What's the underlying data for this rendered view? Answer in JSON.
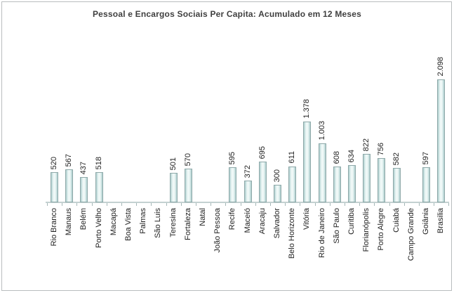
{
  "chart_data": {
    "type": "bar",
    "title": "Pessoal e Encargos Sociais Per Capita: Acumulado em 12 Meses",
    "categories": [
      "Rio Branco",
      "Manaus",
      "Belém",
      "Porto Velho",
      "Macapá",
      "Boa Vista",
      "Palmas",
      "São Luis",
      "Teresina",
      "Fortaleza",
      "Natal",
      "João Pessoa",
      "Recife",
      "Maceió",
      "Aracaju",
      "Salvador",
      "Belo Horizonte",
      "Vitória",
      "Rio de Janeiro",
      "São Paulo",
      "Curitiba",
      "Florianópolis",
      "Porto Alegre",
      "Cuiabá",
      "Campo Grande",
      "Goiânia",
      "Brasilia"
    ],
    "values": [
      520,
      567,
      437,
      518,
      null,
      null,
      null,
      null,
      501,
      570,
      null,
      null,
      595,
      372,
      695,
      300,
      611,
      1378,
      1003,
      608,
      634,
      822,
      756,
      582,
      null,
      597,
      2098
    ],
    "value_labels": [
      "520",
      "567",
      "437",
      "518",
      null,
      null,
      null,
      null,
      "501",
      "570",
      null,
      null,
      "595",
      "372",
      "695",
      "300",
      "611",
      "1.378",
      "1.003",
      "608",
      "634",
      "822",
      "756",
      "582",
      null,
      "597",
      "2.098"
    ],
    "ylim": [
      0,
      2300
    ],
    "grid": false,
    "legend": "none",
    "y_axis_labels": "none",
    "colors": {
      "bar_edge": "#aacccc",
      "bar_mid": "#e6f3f2",
      "bar_center": "#f3faf9",
      "bar_border": "#8fa9a9",
      "axis_line": "#c3d1d1",
      "tick": "#a5b7b7",
      "title": "#3f3f3f",
      "label": "#1f1f1f",
      "frame_border": "#b9bdbf"
    }
  }
}
